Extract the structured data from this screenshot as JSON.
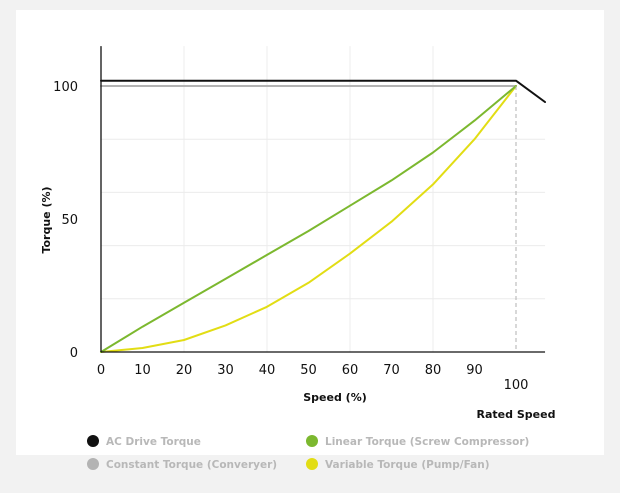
{
  "chart_data": {
    "type": "line",
    "xlabel": "Speed (%)",
    "ylabel": "Torque (%)",
    "xlim": [
      0,
      107
    ],
    "ylim": [
      0,
      115
    ],
    "x_ticks": [
      "0",
      "10",
      "20",
      "30",
      "40",
      "50",
      "60",
      "70",
      "80",
      "90"
    ],
    "x_tick_values": [
      0,
      10,
      20,
      30,
      40,
      50,
      60,
      70,
      80,
      90
    ],
    "rated_tick": "100",
    "rated_label": "Rated Speed",
    "rated_x": 100,
    "y_ticks": [
      "0",
      "50",
      "100"
    ],
    "y_tick_values": [
      0,
      50,
      100
    ],
    "grid": true,
    "legend_position": "bottom",
    "series": [
      {
        "name": "AC Drive Torque",
        "color": "#111111",
        "x": [
          0,
          100,
          107
        ],
        "y": [
          102,
          102,
          94
        ]
      },
      {
        "name": "Constant Torque (Converyer)",
        "color": "#b3b3b3",
        "x": [
          0,
          100
        ],
        "y": [
          100,
          100
        ]
      },
      {
        "name": "Linear Torque (Screw Compressor)",
        "color": "#7cb82f",
        "x": [
          0,
          10,
          20,
          30,
          40,
          50,
          60,
          70,
          80,
          90,
          100
        ],
        "y": [
          0,
          9.5,
          18.5,
          27.5,
          36.5,
          45.5,
          55,
          64.5,
          75,
          87,
          100
        ]
      },
      {
        "name": "Variable Torque (Pump/Fan)",
        "color": "#e2dd14",
        "x": [
          0,
          10,
          20,
          30,
          40,
          50,
          60,
          70,
          80,
          90,
          100
        ],
        "y": [
          0,
          1.5,
          4.5,
          10,
          17,
          26,
          37,
          49,
          63,
          80,
          100
        ]
      }
    ],
    "legend_order": [
      0,
      2,
      1,
      3
    ]
  }
}
